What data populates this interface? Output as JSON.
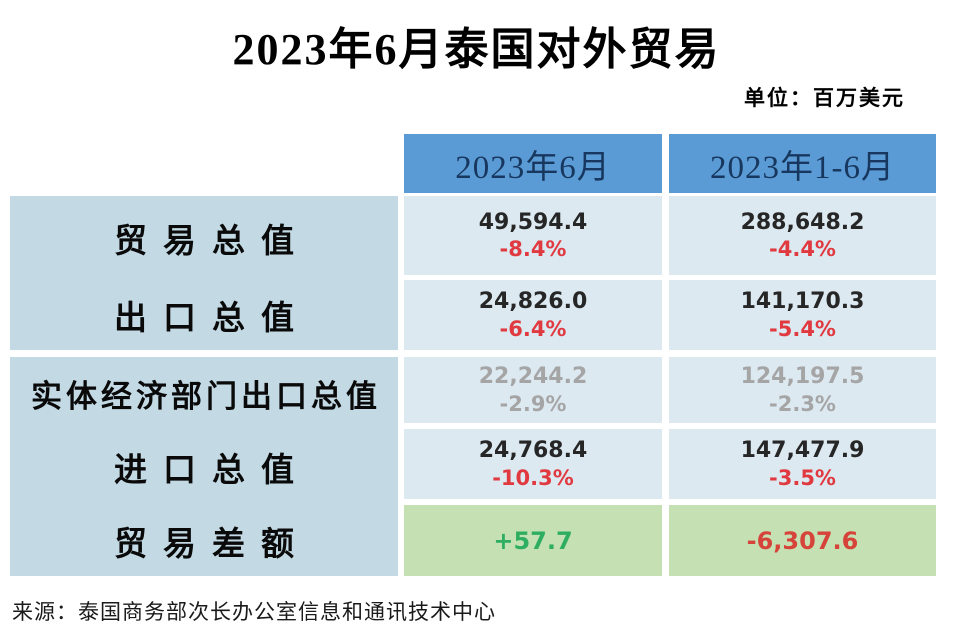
{
  "title": "2023年6月泰国对外贸易",
  "unit_label": "单位：百万美元",
  "source": "来源：泰国商务部次长办公室信息和通讯技术中心",
  "colors": {
    "header_bg": "#5B9BD5",
    "header_text": "#17375E",
    "label_column_bg": "#C3DAE5",
    "value_cell_bg": "#DCE9F1",
    "balance_cell_bg": "#C5E0B2",
    "negative_red": "#E03A40",
    "positive_green": "#2FAE62",
    "muted_gray": "#A5A5A5"
  },
  "table": {
    "columns": [
      "2023年6月",
      "2023年1-6月"
    ],
    "rows": [
      {
        "label": "贸易总值",
        "cells": [
          {
            "value": "49,594.4",
            "change": "-8.4%"
          },
          {
            "value": "288,648.2",
            "change": "-4.4%"
          }
        ]
      },
      {
        "label": "出口总值",
        "cells": [
          {
            "value": "24,826.0",
            "change": "-6.4%"
          },
          {
            "value": "141,170.3",
            "change": "-5.4%"
          }
        ]
      },
      {
        "label": "实体经济部门出口总值",
        "cells": [
          {
            "value": "22,244.2",
            "change": "-2.9%"
          },
          {
            "value": "124,197.5",
            "change": "-2.3%"
          }
        ]
      },
      {
        "label": "进口总值",
        "cells": [
          {
            "value": "24,768.4",
            "change": "-10.3%"
          },
          {
            "value": "147,477.9",
            "change": "-3.5%"
          }
        ]
      },
      {
        "label": "贸易差额",
        "cells": [
          {
            "value": "+57.7"
          },
          {
            "value": "-6,307.6"
          }
        ]
      }
    ]
  },
  "chart_data": {
    "type": "table",
    "title": "2023年6月泰国对外贸易",
    "unit": "百万美元",
    "columns": [
      "2023年6月",
      "2023年1-6月"
    ],
    "rows": [
      {
        "label": "贸易总值",
        "values": [
          49594.4,
          288648.2
        ],
        "yoy_change_pct": [
          -8.4,
          -4.4
        ]
      },
      {
        "label": "出口总值",
        "values": [
          24826.0,
          141170.3
        ],
        "yoy_change_pct": [
          -6.4,
          -5.4
        ]
      },
      {
        "label": "实体经济部门出口总值",
        "values": [
          22244.2,
          124197.5
        ],
        "yoy_change_pct": [
          -2.9,
          -2.3
        ]
      },
      {
        "label": "进口总值",
        "values": [
          24768.4,
          147477.9
        ],
        "yoy_change_pct": [
          -10.3,
          -3.5
        ]
      },
      {
        "label": "贸易差额",
        "values": [
          57.7,
          -6307.6
        ],
        "yoy_change_pct": [
          null,
          null
        ]
      }
    ],
    "source": "泰国商务部次长办公室信息和通讯技术中心"
  }
}
